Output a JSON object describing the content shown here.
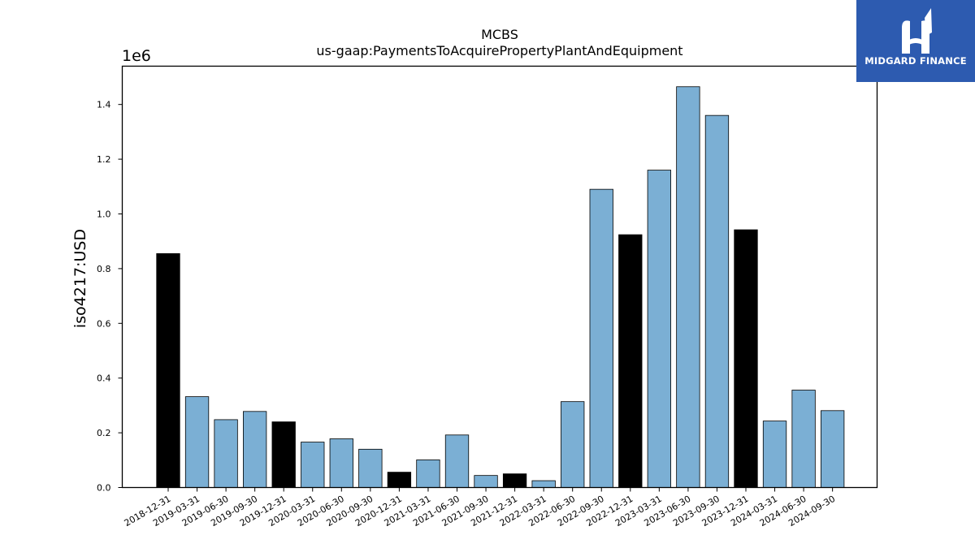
{
  "chart_data": {
    "type": "bar",
    "title": "MCBS",
    "subtitle": "us-gaap:PaymentsToAcquirePropertyPlantAndEquipment",
    "ylabel": "iso4217:USD",
    "xlabel": "",
    "offset_label": "1e6",
    "ylim": [
      0,
      1540000
    ],
    "yticks": [
      0,
      200000,
      400000,
      600000,
      800000,
      1000000,
      1200000,
      1400000
    ],
    "ytick_labels": [
      "0.0",
      "0.2",
      "0.4",
      "0.6",
      "0.8",
      "1.0",
      "1.2",
      "1.4"
    ],
    "grid": false,
    "categories": [
      "2018-12-31",
      "2019-03-31",
      "2019-06-30",
      "2019-09-30",
      "2019-12-31",
      "2020-03-31",
      "2020-06-30",
      "2020-09-30",
      "2020-12-31",
      "2021-03-31",
      "2021-06-30",
      "2021-09-30",
      "2021-12-31",
      "2022-03-31",
      "2022-06-30",
      "2022-09-30",
      "2022-12-31",
      "2023-03-31",
      "2023-06-30",
      "2023-09-30",
      "2023-12-31",
      "2024-03-31",
      "2024-06-30",
      "2024-09-30"
    ],
    "values": [
      855000,
      332000,
      248000,
      278000,
      240000,
      166000,
      178000,
      140000,
      56000,
      101000,
      192000,
      44000,
      50000,
      25000,
      314000,
      1090000,
      924000,
      1160000,
      1465000,
      1360000,
      942000,
      243000,
      356000,
      281000
    ],
    "annual": [
      true,
      false,
      false,
      false,
      true,
      false,
      false,
      false,
      true,
      false,
      false,
      false,
      true,
      false,
      false,
      false,
      true,
      false,
      false,
      false,
      true,
      false,
      false,
      false
    ],
    "colors": {
      "quarterly": "#7bafd4",
      "annual": "#000000",
      "edge": "#000000"
    }
  },
  "logo": {
    "text": "MIDGARD FINANCE",
    "background": "#2d5bb0"
  }
}
